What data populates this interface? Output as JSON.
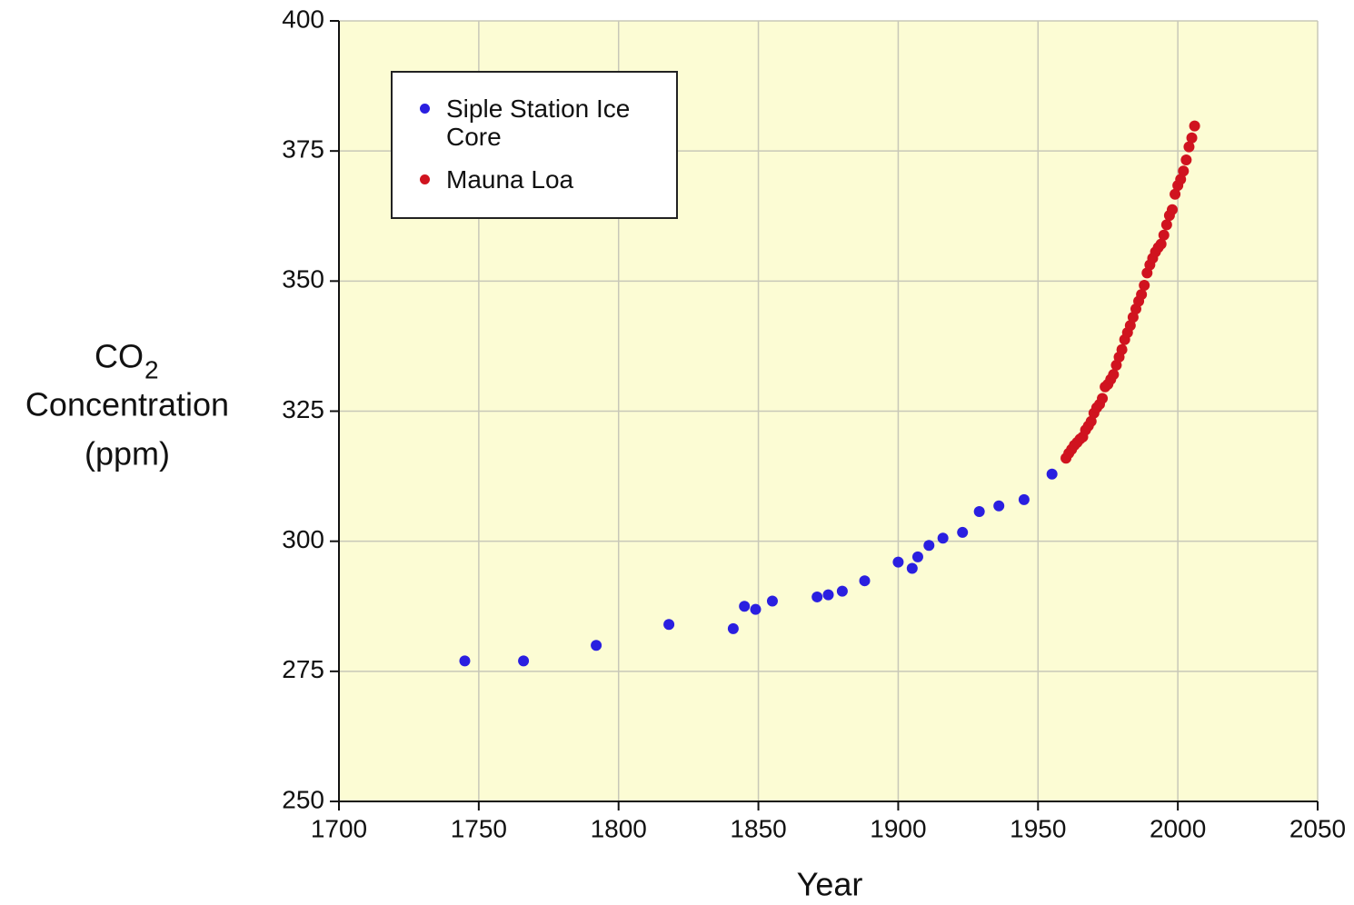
{
  "chart_data": {
    "type": "scatter",
    "x_label": "Year",
    "y_label": [
      "CO",
      "2",
      "Concentration",
      "(ppm)"
    ],
    "xlim": [
      1700,
      2050
    ],
    "xticks": [
      1700,
      1750,
      1800,
      1850,
      1900,
      1950,
      2000,
      2050
    ],
    "ylim": [
      250,
      400
    ],
    "yticks": [
      250,
      275,
      300,
      325,
      350,
      375,
      400
    ],
    "grid": true,
    "legend": "upper left",
    "series": [
      {
        "name": "Siple Station Ice Core",
        "color": "#2a1fe0",
        "x": [
          1745,
          1766,
          1792,
          1818,
          1841,
          1845,
          1849,
          1855,
          1871,
          1875,
          1880,
          1888,
          1900,
          1905,
          1907,
          1911,
          1916,
          1923,
          1929,
          1936,
          1945,
          1955
        ],
        "values": [
          277,
          277,
          280,
          284,
          283.2,
          287.5,
          286.9,
          288.5,
          289.3,
          289.7,
          290.4,
          292.4,
          296,
          294.8,
          297,
          299.2,
          300.6,
          301.7,
          305.7,
          306.8,
          308,
          312.9
        ]
      },
      {
        "name": "Mauna Loa",
        "color": "#d0131f",
        "x": [
          1960,
          1961,
          1962,
          1963,
          1964,
          1965,
          1966,
          1967,
          1968,
          1969,
          1970,
          1971,
          1972,
          1973,
          1974,
          1975,
          1976,
          1977,
          1978,
          1979,
          1980,
          1981,
          1982,
          1983,
          1984,
          1985,
          1986,
          1987,
          1988,
          1989,
          1990,
          1991,
          1992,
          1993,
          1994,
          1995,
          1996,
          1997,
          1998,
          1999,
          2000,
          2001,
          2002,
          2003,
          2004,
          2005,
          2006
        ],
        "values": [
          315.97,
          316.91,
          317.64,
          318.45,
          318.99,
          319.62,
          320.04,
          321.38,
          322.16,
          323.04,
          324.62,
          325.68,
          326.32,
          327.45,
          329.68,
          330.18,
          331.11,
          332.04,
          333.83,
          335.4,
          336.84,
          338.75,
          340.11,
          341.45,
          343.05,
          344.65,
          346.12,
          347.42,
          349.19,
          351.57,
          353.12,
          354.39,
          355.61,
          356.45,
          357.1,
          358.83,
          360.82,
          362.61,
          363.73,
          366.7,
          368.38,
          369.55,
          371.14,
          373.28,
          375.8,
          377.52,
          379.8
        ]
      }
    ]
  }
}
